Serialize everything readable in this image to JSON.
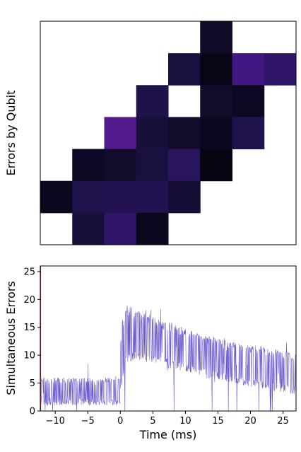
{
  "chart_data": [
    {
      "type": "heatmap",
      "title": "",
      "xlabel": "",
      "ylabel": "Errors by Qubit",
      "rows": 7,
      "cols": 8,
      "colormap": [
        "#05030f",
        "#1a1040",
        "#2a1660",
        "#3e1780",
        "#5a1c93",
        "#6e1f9a"
      ],
      "cells": [
        {
          "row": 0,
          "col": 5,
          "value": 0.1
        },
        {
          "row": 1,
          "col": 4,
          "value": 0.2
        },
        {
          "row": 1,
          "col": 5,
          "value": 0.03
        },
        {
          "row": 1,
          "col": 6,
          "value": 0.62
        },
        {
          "row": 1,
          "col": 7,
          "value": 0.45
        },
        {
          "row": 2,
          "col": 3,
          "value": 0.25
        },
        {
          "row": 2,
          "col": 5,
          "value": 0.12
        },
        {
          "row": 2,
          "col": 6,
          "value": 0.08
        },
        {
          "row": 3,
          "col": 2,
          "value": 0.75
        },
        {
          "row": 3,
          "col": 3,
          "value": 0.18
        },
        {
          "row": 3,
          "col": 4,
          "value": 0.12
        },
        {
          "row": 3,
          "col": 5,
          "value": 0.06
        },
        {
          "row": 3,
          "col": 6,
          "value": 0.28
        },
        {
          "row": 4,
          "col": 1,
          "value": 0.08
        },
        {
          "row": 4,
          "col": 2,
          "value": 0.12
        },
        {
          "row": 4,
          "col": 3,
          "value": 0.2
        },
        {
          "row": 4,
          "col": 4,
          "value": 0.38
        },
        {
          "row": 4,
          "col": 5,
          "value": 0.01
        },
        {
          "row": 5,
          "col": 0,
          "value": 0.06
        },
        {
          "row": 5,
          "col": 1,
          "value": 0.28
        },
        {
          "row": 5,
          "col": 2,
          "value": 0.3
        },
        {
          "row": 5,
          "col": 3,
          "value": 0.3
        },
        {
          "row": 5,
          "col": 4,
          "value": 0.15
        },
        {
          "row": 6,
          "col": 1,
          "value": 0.18
        },
        {
          "row": 6,
          "col": 2,
          "value": 0.45
        },
        {
          "row": 6,
          "col": 3,
          "value": 0.06
        }
      ]
    },
    {
      "type": "line",
      "title": "",
      "xlabel": "Time (ms)",
      "ylabel": "Simultaneous Errors",
      "xlim": [
        -12.3,
        27
      ],
      "ylim": [
        0,
        26
      ],
      "xticks": [
        -10,
        -5,
        0,
        5,
        10,
        15,
        20,
        25
      ],
      "yticks": [
        0,
        5,
        10,
        15,
        20,
        25
      ],
      "grid": false,
      "line_color": "#6a5acd",
      "marker_color": "#d62728",
      "series": [
        {
          "envelope_x": [
            -12.3,
            -0.01,
            0.0,
            0.5,
            1,
            2,
            3,
            4,
            5,
            6,
            7,
            8,
            9,
            10,
            11,
            12,
            13,
            14,
            15,
            16,
            17,
            18,
            19,
            20,
            21,
            22,
            23,
            24,
            25,
            26,
            27
          ],
          "upper": [
            6,
            6,
            13,
            18,
            19,
            18.5,
            18,
            17.5,
            17,
            16.5,
            16,
            15.8,
            15.3,
            14.8,
            14.5,
            14,
            13.7,
            13.4,
            13,
            12.7,
            12.4,
            12.2,
            12,
            11.8,
            11.6,
            11.4,
            11.2,
            11,
            10.8,
            10.6,
            10.5
          ],
          "lower": [
            1,
            1,
            3,
            6,
            8.5,
            9,
            9,
            8.8,
            8.5,
            8.2,
            7.8,
            7.5,
            7.2,
            7,
            6.7,
            6.4,
            6,
            5.7,
            5.5,
            5.2,
            5,
            4.7,
            4.5,
            4.3,
            4.1,
            3.9,
            3.7,
            3.5,
            3.3,
            3.1,
            3
          ]
        }
      ]
    }
  ]
}
